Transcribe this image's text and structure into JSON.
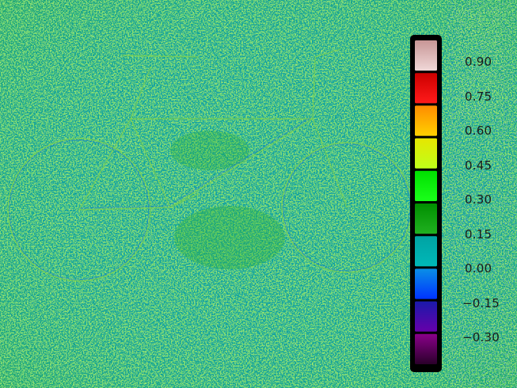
{
  "image": {
    "description_free": true,
    "dominant_colors": {
      "base_teal": "#10a3a0",
      "green_noise": "#32b22a",
      "yellow_green_spots": "#9bd62a",
      "blue_spots": "#1e4de0"
    }
  },
  "colorbar": {
    "ticks": [
      "0.90",
      "0.75",
      "0.60",
      "0.45",
      "0.30",
      "0.15",
      "0.00",
      "−0.15",
      "−0.30"
    ],
    "segments": [
      {
        "top": "#c89696",
        "bottom": "#f0d8d8"
      },
      {
        "top": "#cc0000",
        "bottom": "#ff1a1a"
      },
      {
        "top": "#ff8c00",
        "bottom": "#ffd000"
      },
      {
        "top": "#e6e600",
        "bottom": "#bfff1a"
      },
      {
        "top": "#00e000",
        "bottom": "#1aff1a"
      },
      {
        "top": "#008f00",
        "bottom": "#20b020"
      },
      {
        "top": "#00a3a3",
        "bottom": "#00b8b8"
      },
      {
        "top": "#0a8fe6",
        "bottom": "#0033ff"
      },
      {
        "top": "#1a1aaa",
        "bottom": "#6600aa"
      },
      {
        "top": "#8a008a",
        "bottom": "#2a002a"
      }
    ]
  }
}
